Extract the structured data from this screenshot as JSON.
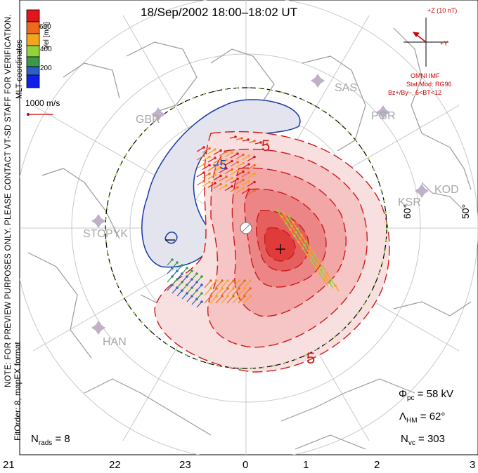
{
  "title": "18/Sep/2002 18:00–18:02 UT",
  "colorbar": {
    "label": "Vel [m/s]",
    "ticks": [
      "600",
      "400",
      "200"
    ],
    "colors": [
      "#e4141b",
      "#f06a1e",
      "#f4a51f",
      "#8fd43a",
      "#3a9a4a",
      "#2a60c8",
      "#1020e8"
    ]
  },
  "coords_note": "MLT coordinates",
  "vector_scale": {
    "label": "1000 m/s"
  },
  "side_note": "NOTE: FOR PREVIEW PURPOSES ONLY. PLEASE CONTACT VT-SD STAFF FOR VERIFICATION.",
  "fit_order": "FitOrder: 8, mapEX format",
  "imf": {
    "axis_z": "+Z (10 nT)",
    "axis_y": "+Y",
    "source": "OMNI IMF",
    "stat_mod": "Stat Mod: RG96",
    "condition": "Bz+/By−, 6<BT<12"
  },
  "stations": [
    "SAS",
    "PGR",
    "GBR",
    "KOD",
    "KSR",
    "STO",
    "PYK",
    "HAN"
  ],
  "lat_labels": [
    "60°",
    "50°"
  ],
  "contour_labels": [
    "5",
    "5",
    "−5"
  ],
  "hour_ticks": [
    "21",
    "22",
    "23",
    "0",
    "1",
    "2",
    "3"
  ],
  "stats": {
    "phi_pc": "= 58 kV",
    "lambda_hm": "= 62°",
    "n_vc": "= 303",
    "n_rads": "= 8"
  }
}
